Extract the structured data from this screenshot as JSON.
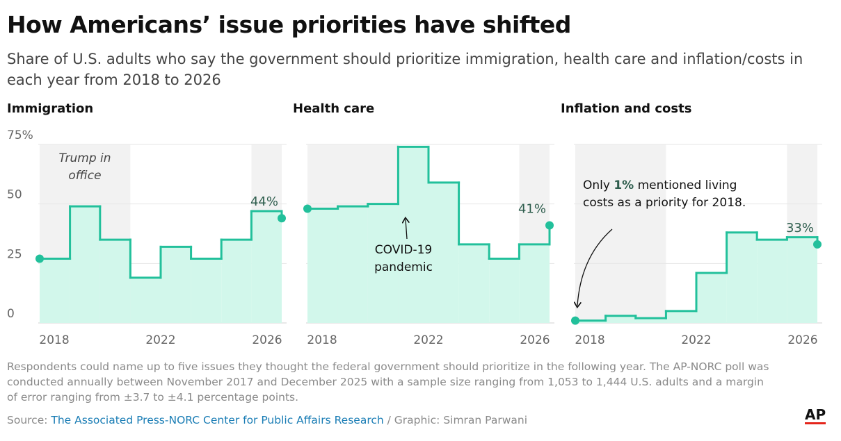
{
  "title": "How Americans’ issue priorities have shifted",
  "subtitle": "Share of U.S. adults who say the government should prioritize immigration, health care and inflation/costs in each year from 2018 to 2026",
  "chart_data": [
    {
      "type": "step",
      "title": "Immigration",
      "x": [
        2017.45,
        2018.59,
        2019.72,
        2020.86,
        2022.0,
        2023.14,
        2024.28,
        2025.41,
        2026.55
      ],
      "values": [
        27,
        49,
        35,
        19,
        32,
        27,
        35,
        47,
        44
      ],
      "value_labels": [
        null,
        null,
        null,
        null,
        null,
        null,
        null,
        null,
        "44%"
      ],
      "xlim": [
        2017.45,
        2026.55
      ],
      "xticks": [
        2018,
        2022,
        2026
      ],
      "ylim": [
        0,
        75
      ],
      "yticks": [
        0,
        25,
        50,
        {
          "value": 75,
          "label": "75%"
        }
      ],
      "color": "#22c09b",
      "fill": "#d2f7eb",
      "shade_color": "#f2f2f2",
      "shaded_ranges": [
        [
          2017.45,
          2020.86
        ],
        [
          2025.41,
          2026.55
        ]
      ],
      "annotation": {
        "parts": [
          "Trump in office"
        ],
        "italic": true
      }
    },
    {
      "type": "step",
      "title": "Health care",
      "x": [
        2017.45,
        2018.59,
        2019.72,
        2020.86,
        2022.0,
        2023.14,
        2024.28,
        2025.41,
        2026.55
      ],
      "values": [
        48,
        49,
        50,
        74,
        59,
        33,
        27,
        33,
        41
      ],
      "value_labels": [
        null,
        null,
        null,
        null,
        null,
        null,
        null,
        null,
        "41%"
      ],
      "xlim": [
        2017.45,
        2026.55
      ],
      "xticks": [
        2018,
        2022,
        2026
      ],
      "ylim": [
        0,
        75
      ],
      "yticks": [
        0,
        25,
        50,
        {
          "value": 75,
          "label": "75%"
        }
      ],
      "color": "#22c09b",
      "fill": "#d2f7eb",
      "shade_color": "#f2f2f2",
      "shaded_ranges": [
        [
          2017.45,
          2020.86
        ],
        [
          2025.41,
          2026.55
        ]
      ],
      "annotation": {
        "parts": [
          "COVID-19 pandemic"
        ],
        "italic": false
      }
    },
    {
      "type": "step",
      "title": "Inflation and costs",
      "x": [
        2017.45,
        2018.59,
        2019.72,
        2020.86,
        2022.0,
        2023.14,
        2024.28,
        2025.41,
        2026.55
      ],
      "values": [
        1,
        3,
        2,
        5,
        21,
        38,
        35,
        36,
        33
      ],
      "value_labels": [
        null,
        null,
        null,
        null,
        null,
        null,
        null,
        null,
        "33%"
      ],
      "xlim": [
        2017.45,
        2026.55
      ],
      "xticks": [
        2018,
        2022,
        2026
      ],
      "ylim": [
        0,
        75
      ],
      "yticks": [
        0,
        25,
        50,
        {
          "value": 75,
          "label": "75%"
        }
      ],
      "color": "#22c09b",
      "fill": "#d2f7eb",
      "shade_color": "#f2f2f2",
      "shaded_ranges": [
        [
          2017.45,
          2020.86
        ],
        [
          2025.41,
          2026.55
        ]
      ],
      "annotation": {
        "parts": [
          "Only ",
          "1%",
          " mentioned living costs as a priority for 2018."
        ],
        "italic": false
      }
    }
  ],
  "note": "Respondents could name up to five issues they thought the federal government should prioritize in the following year. The AP-NORC poll was conducted annually between November 2017 and December 2025 with a sample size ranging from 1,053 to 1,444 U.S. adults and a margin of error ranging from ±3.7 to ±4.1 percentage points.",
  "source": {
    "prefix": "Source: ",
    "link": "The Associated Press-NORC Center for Public Affairs Research",
    "suffix": " / Graphic: Simran Parwani"
  },
  "logo": "AP"
}
